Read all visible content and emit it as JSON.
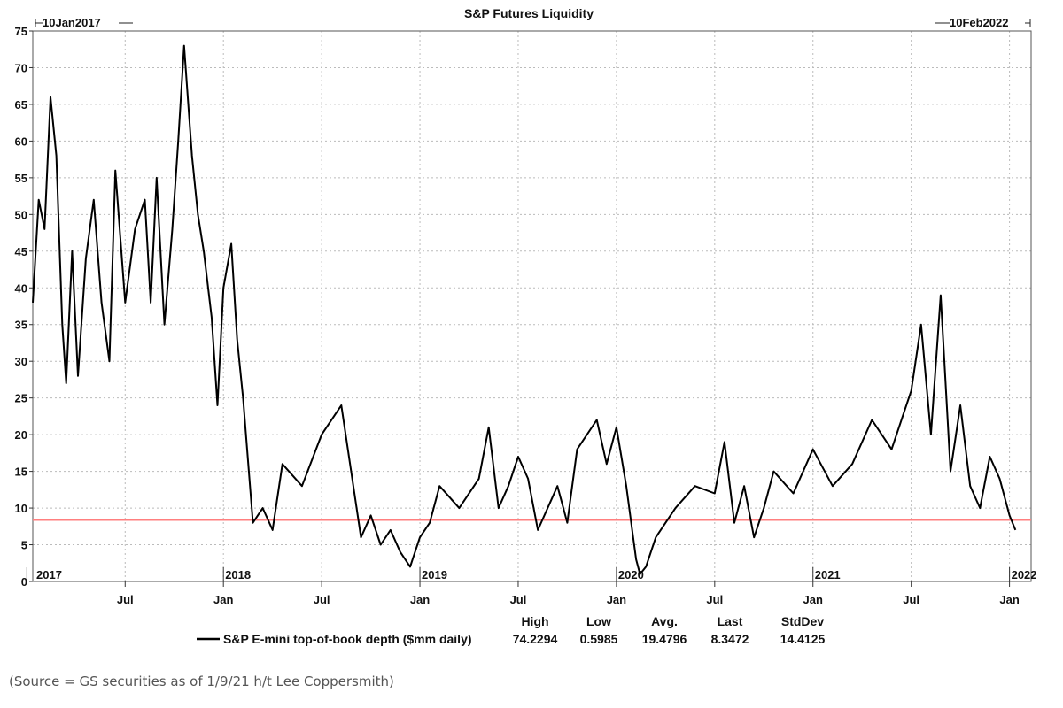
{
  "chart_data": {
    "type": "line",
    "title": "S&P Futures Liquidity",
    "start_label": "10Jan2017",
    "end_label": "10Feb2022",
    "ylim": [
      0,
      75
    ],
    "yticks": [
      0,
      5,
      10,
      15,
      20,
      25,
      30,
      35,
      40,
      45,
      50,
      55,
      60,
      65,
      70,
      75
    ],
    "xlim": [
      2017.03,
      2022.11
    ],
    "year_labels": [
      {
        "x": 2017.0,
        "label": "2017"
      },
      {
        "x": 2018.0,
        "label": "2018"
      },
      {
        "x": 2019.0,
        "label": "2019"
      },
      {
        "x": 2020.0,
        "label": "2020"
      },
      {
        "x": 2021.0,
        "label": "2021"
      },
      {
        "x": 2022.0,
        "label": "2022"
      }
    ],
    "month_labels": [
      {
        "x": 2017.5,
        "label": "Jul"
      },
      {
        "x": 2018.0,
        "label": "Jan"
      },
      {
        "x": 2018.5,
        "label": "Jul"
      },
      {
        "x": 2019.0,
        "label": "Jan"
      },
      {
        "x": 2019.5,
        "label": "Jul"
      },
      {
        "x": 2020.0,
        "label": "Jan"
      },
      {
        "x": 2020.5,
        "label": "Jul"
      },
      {
        "x": 2021.0,
        "label": "Jan"
      },
      {
        "x": 2021.5,
        "label": "Jul"
      },
      {
        "x": 2022.0,
        "label": "Jan"
      }
    ],
    "reference_line": {
      "value": 8.3472,
      "color": "#ff7f7f"
    },
    "series": [
      {
        "name": "S&P E-mini top-of-book depth ($mm daily)",
        "color": "#000000",
        "x": [
          2017.03,
          2017.06,
          2017.09,
          2017.12,
          2017.15,
          2017.18,
          2017.2,
          2017.23,
          2017.26,
          2017.3,
          2017.34,
          2017.38,
          2017.42,
          2017.45,
          2017.5,
          2017.55,
          2017.6,
          2017.63,
          2017.66,
          2017.7,
          2017.74,
          2017.77,
          2017.8,
          2017.84,
          2017.87,
          2017.9,
          2017.94,
          2017.97,
          2018.0,
          2018.04,
          2018.07,
          2018.1,
          2018.15,
          2018.2,
          2018.25,
          2018.3,
          2018.4,
          2018.5,
          2018.6,
          2018.65,
          2018.7,
          2018.75,
          2018.8,
          2018.85,
          2018.9,
          2018.95,
          2019.0,
          2019.05,
          2019.1,
          2019.2,
          2019.3,
          2019.35,
          2019.4,
          2019.45,
          2019.5,
          2019.55,
          2019.6,
          2019.7,
          2019.75,
          2019.8,
          2019.9,
          2019.95,
          2020.0,
          2020.05,
          2020.1,
          2020.12,
          2020.15,
          2020.2,
          2020.3,
          2020.4,
          2020.5,
          2020.55,
          2020.6,
          2020.65,
          2020.7,
          2020.75,
          2020.8,
          2020.9,
          2021.0,
          2021.1,
          2021.2,
          2021.3,
          2021.4,
          2021.5,
          2021.55,
          2021.6,
          2021.65,
          2021.7,
          2021.75,
          2021.8,
          2021.85,
          2021.9,
          2021.95,
          2022.0,
          2022.03
        ],
        "values": [
          38,
          52,
          48,
          66,
          58,
          35,
          27,
          45,
          28,
          44,
          52,
          38,
          30,
          56,
          38,
          48,
          52,
          38,
          55,
          35,
          48,
          60,
          73,
          58,
          50,
          45,
          36,
          24,
          40,
          46,
          33,
          25,
          8,
          10,
          7,
          16,
          13,
          20,
          24,
          15,
          6,
          9,
          5,
          7,
          4,
          2,
          6,
          8,
          13,
          10,
          14,
          21,
          10,
          13,
          17,
          14,
          7,
          13,
          8,
          18,
          22,
          16,
          21,
          13,
          3,
          1,
          2,
          6,
          10,
          13,
          12,
          19,
          8,
          13,
          6,
          10,
          15,
          12,
          18,
          13,
          16,
          22,
          18,
          26,
          35,
          20,
          39,
          15,
          24,
          13,
          10,
          17,
          14,
          9,
          7
        ]
      }
    ],
    "legend": {
      "label": "S&P E-mini top-of-book depth ($mm daily)",
      "stat_headers": [
        "High",
        "Low",
        "Avg.",
        "Last",
        "StdDev"
      ],
      "stat_values": [
        "74.2294",
        "0.5985",
        "19.4796",
        "8.3472",
        "14.4125"
      ]
    }
  },
  "source_note": "(Source = GS securities as of 1/9/21 h/t Lee Coppersmith)"
}
